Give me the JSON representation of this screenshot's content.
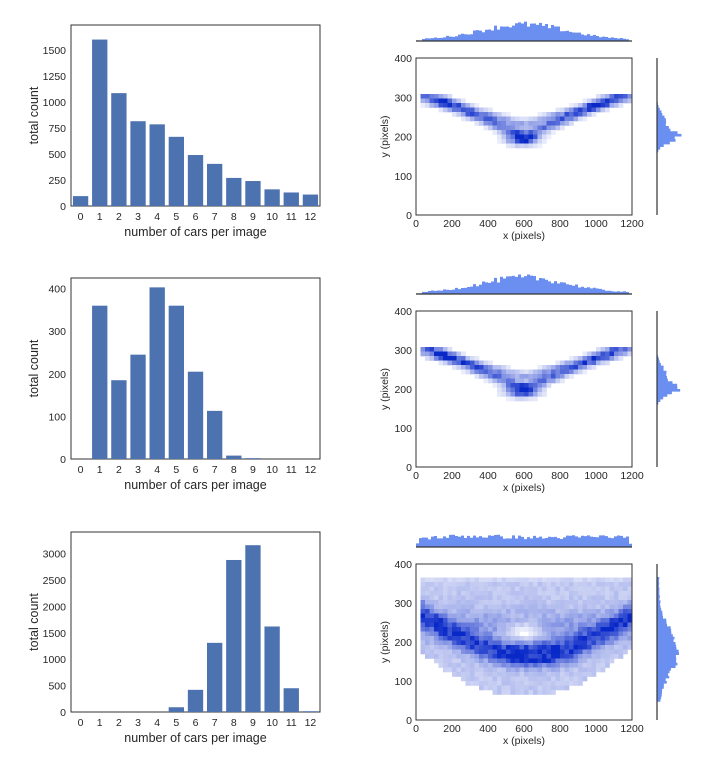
{
  "chart_data": [
    {
      "type": "bar",
      "xlabel": "number of cars per image",
      "ylabel": "total count",
      "categories": [
        "0",
        "1",
        "2",
        "3",
        "4",
        "5",
        "6",
        "7",
        "8",
        "9",
        "10",
        "11",
        "12"
      ],
      "values": [
        95,
        1600,
        1085,
        815,
        785,
        665,
        490,
        405,
        270,
        240,
        160,
        130,
        110
      ],
      "yticks": [
        0,
        250,
        500,
        750,
        1000,
        1250,
        1500
      ],
      "ylim": [
        0,
        1740
      ],
      "color": "#4c72b0"
    },
    {
      "type": "heatmap",
      "xlabel": "x (pixels)",
      "ylabel": "y (pixels)",
      "xticks": [
        0,
        200,
        400,
        600,
        800,
        1000,
        1200
      ],
      "yticks": [
        0,
        100,
        200,
        300,
        400
      ],
      "xlim": [
        0,
        1200
      ],
      "ylim": [
        0,
        400
      ],
      "marginal_color": "#6b8ff0",
      "density_color": "#0a2fc4",
      "description": "hexbin density with marginal histograms"
    },
    {
      "type": "bar",
      "xlabel": "number of cars per image",
      "ylabel": "total count",
      "categories": [
        "0",
        "1",
        "2",
        "3",
        "4",
        "5",
        "6",
        "7",
        "8",
        "9",
        "10",
        "11",
        "12"
      ],
      "values": [
        0,
        360,
        185,
        245,
        403,
        360,
        205,
        113,
        8,
        2,
        0,
        0,
        0
      ],
      "yticks": [
        0,
        100,
        200,
        300,
        400
      ],
      "ylim": [
        0,
        425
      ],
      "color": "#4c72b0"
    },
    {
      "type": "heatmap",
      "xlabel": "x (pixels)",
      "ylabel": "y (pixels)",
      "xticks": [
        0,
        200,
        400,
        600,
        800,
        1000,
        1200
      ],
      "yticks": [
        0,
        100,
        200,
        300,
        400
      ],
      "xlim": [
        0,
        1200
      ],
      "ylim": [
        0,
        400
      ],
      "marginal_color": "#6b8ff0",
      "density_color": "#0a2fc4",
      "description": "hexbin density with marginal histograms"
    },
    {
      "type": "bar",
      "xlabel": "number of cars per image",
      "ylabel": "total count",
      "categories": [
        "0",
        "1",
        "2",
        "3",
        "4",
        "5",
        "6",
        "7",
        "8",
        "9",
        "10",
        "11",
        "12"
      ],
      "values": [
        0,
        0,
        0,
        0,
        0,
        90,
        420,
        1310,
        2880,
        3160,
        1620,
        450,
        15
      ],
      "yticks": [
        0,
        500,
        1000,
        1500,
        2000,
        2500,
        3000
      ],
      "ylim": [
        0,
        3410
      ],
      "color": "#4c72b0"
    },
    {
      "type": "heatmap",
      "xlabel": "x (pixels)",
      "ylabel": "y (pixels)",
      "xticks": [
        0,
        200,
        400,
        600,
        800,
        1000,
        1200
      ],
      "yticks": [
        0,
        100,
        200,
        300,
        400
      ],
      "xlim": [
        0,
        1200
      ],
      "ylim": [
        0,
        400
      ],
      "marginal_color": "#6b8ff0",
      "density_color": "#0a2fc4",
      "description": "hexbin density with marginal histograms"
    }
  ]
}
